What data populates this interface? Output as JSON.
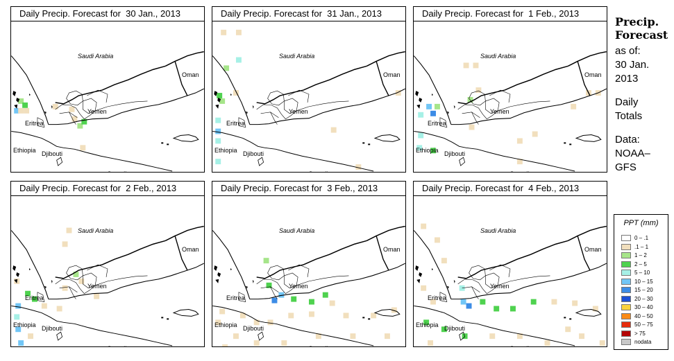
{
  "panels": [
    {
      "title": "Daily Precip. Forecast for  30 Jan., 2013",
      "date": "30 Jan., 2013",
      "labels": {
        "saudi": "Saudi Arabia",
        "oman": "Oman",
        "yemen": "Yemen",
        "eritrea": "Eritrea",
        "ethiopia": "Ethiopia",
        "djibouti": "Djibouti",
        "somalia": "Somalia"
      }
    },
    {
      "title": "Daily Precip. Forecast for  31 Jan., 2013",
      "date": "31 Jan., 2013",
      "labels": {
        "saudi": "Saudi Arabia",
        "oman": "Oman",
        "yemen": "Yemen",
        "eritrea": "Eritrea",
        "ethiopia": "Ethiopia",
        "djibouti": "Djibouti",
        "somalia": "Somalia"
      }
    },
    {
      "title": "Daily Precip. Forecast for  1 Feb., 2013",
      "date": "1 Feb., 2013",
      "labels": {
        "saudi": "Saudi Arabia",
        "oman": "Oman",
        "yemen": "Yemen",
        "eritrea": "Eritrea",
        "ethiopia": "Ethiopia",
        "djibouti": "Djibouti",
        "somalia": "Somalia"
      }
    },
    {
      "title": "Daily Precip. Forecast for  2 Feb., 2013",
      "date": "2 Feb., 2013",
      "labels": {
        "saudi": "Saudi Arabia",
        "oman": "Oman",
        "yemen": "Yemen",
        "eritrea": "Eritrea",
        "ethiopia": "Ethiopia",
        "djibouti": "Djibouti",
        "somalia": "Somalia"
      }
    },
    {
      "title": "Daily Precip. Forecast for  3 Feb., 2013",
      "date": "3 Feb., 2013",
      "labels": {
        "saudi": "Saudi Arabia",
        "oman": "Oman",
        "yemen": "Yemen",
        "eritrea": "Eritrea",
        "ethiopia": "Ethiopia",
        "djibouti": "Djibouti",
        "somalia": "Somalia"
      }
    },
    {
      "title": "Daily Precip. Forecast for  4 Feb., 2013",
      "date": "4 Feb., 2013",
      "labels": {
        "saudi": "Saudi Arabia",
        "oman": "Oman",
        "yemen": "Yemen",
        "eritrea": "Eritrea",
        "ethiopia": "Ethiopia",
        "djibouti": "Djibouti",
        "somalia": "Somalia"
      }
    }
  ],
  "sidebar": {
    "title_line1": "Precip.",
    "title_line2": "Forecast",
    "asof_label": "as of:",
    "asof_line1": "30 Jan.",
    "asof_line2": "2013",
    "daily_line1": "Daily",
    "daily_line2": "Totals",
    "data_line1": "Data:",
    "data_line2": "NOAA–",
    "data_line3": "GFS"
  },
  "legend": {
    "title": "PPT (mm)",
    "items": [
      {
        "label": "0 – .1",
        "color": "#ffffff"
      },
      {
        "label": ".1 – 1",
        "color": "#f1dfbd"
      },
      {
        "label": "1 – 2",
        "color": "#a6e58a"
      },
      {
        "label": "2 – 5",
        "color": "#4fd24f"
      },
      {
        "label": "5 – 10",
        "color": "#a6f0e6"
      },
      {
        "label": "10 – 15",
        "color": "#72c6f6"
      },
      {
        "label": "15 – 20",
        "color": "#3c8ce6"
      },
      {
        "label": "20 – 30",
        "color": "#1c50d6"
      },
      {
        "label": "30 – 40",
        "color": "#fad23c"
      },
      {
        "label": "40 – 50",
        "color": "#fa8a16"
      },
      {
        "label": "50 – 75",
        "color": "#e62c0c"
      },
      {
        "label": "> 75",
        "color": "#b40404"
      },
      {
        "label": "nodata",
        "color": "#c8c8c8"
      }
    ]
  }
}
